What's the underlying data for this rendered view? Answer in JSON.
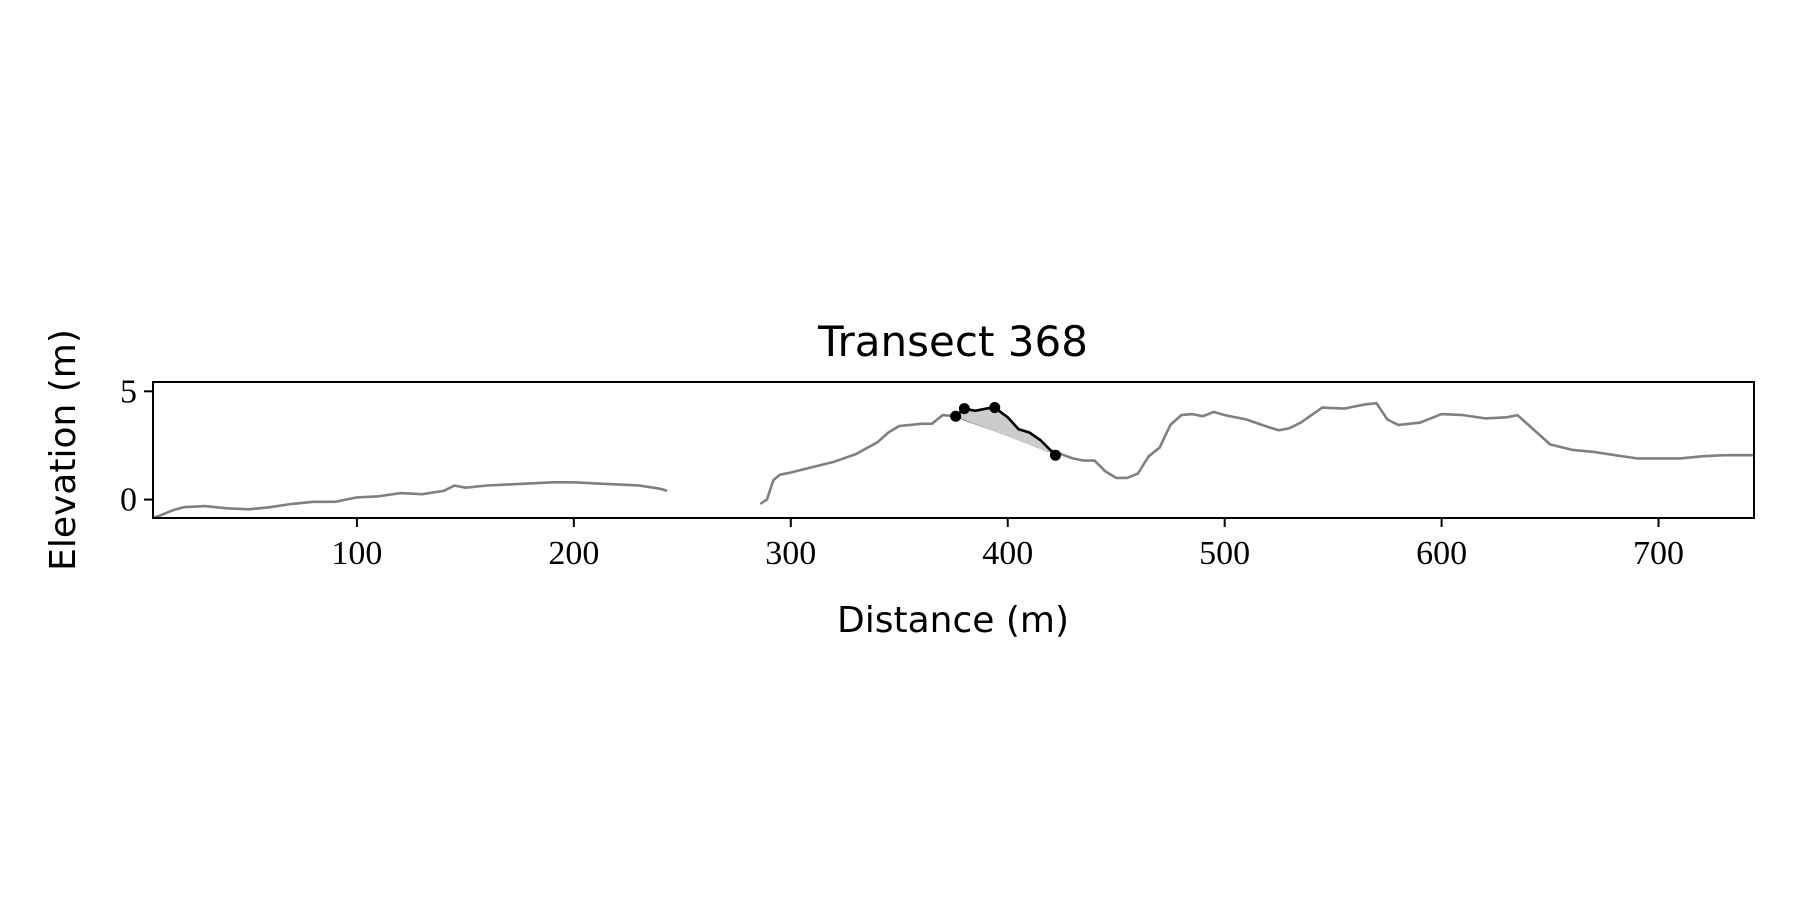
{
  "chart_data": {
    "type": "line",
    "title": "Transect 368",
    "xlabel": "Distance (m)",
    "ylabel": "Elevation (m)",
    "xlim": [
      6,
      744
    ],
    "ylim": [
      -0.85,
      5.43
    ],
    "xticks": [
      100,
      200,
      300,
      400,
      500,
      600,
      700
    ],
    "yticks": [
      0,
      5
    ],
    "series": [
      {
        "color": "#808080",
        "x": [
          6,
          10,
          15,
          20,
          30,
          40,
          50,
          60,
          70,
          80,
          90,
          100,
          110,
          120,
          130,
          140,
          145,
          150,
          160,
          170,
          180,
          190,
          200,
          210,
          220,
          230,
          240,
          243,
          265,
          286,
          289,
          292,
          295,
          300,
          310,
          320,
          330,
          340,
          345,
          350,
          355,
          360,
          365,
          370,
          376,
          430,
          435,
          440,
          445,
          450,
          455,
          460,
          465,
          470,
          475,
          480,
          485,
          490,
          495,
          500,
          510,
          520,
          525,
          530,
          535,
          545,
          555,
          565,
          570,
          575,
          580,
          590,
          600,
          610,
          620,
          630,
          635,
          640,
          650,
          660,
          670,
          680,
          690,
          700,
          710,
          720,
          730,
          744
        ],
        "values": [
          -0.85,
          -0.7,
          -0.5,
          -0.35,
          -0.3,
          -0.4,
          -0.45,
          -0.35,
          -0.2,
          -0.1,
          -0.1,
          0.1,
          0.15,
          0.3,
          0.25,
          0.4,
          0.65,
          0.55,
          0.65,
          0.7,
          0.75,
          0.8,
          0.8,
          0.75,
          0.7,
          0.65,
          0.5,
          0.4,
          null,
          -0.2,
          0,
          0.9,
          1.15,
          1.25,
          1.5,
          1.75,
          2.1,
          2.65,
          3.1,
          3.4,
          3.45,
          3.5,
          3.5,
          3.9,
          3.85,
          1.9,
          1.8,
          1.8,
          1.3,
          1.0,
          1.0,
          1.2,
          2.0,
          2.4,
          3.45,
          3.9,
          3.95,
          3.85,
          4.05,
          3.9,
          3.7,
          3.35,
          3.2,
          3.3,
          3.55,
          4.25,
          4.2,
          4.4,
          4.45,
          3.7,
          3.45,
          3.55,
          3.95,
          3.9,
          3.75,
          3.8,
          3.9,
          3.45,
          2.55,
          2.3,
          2.2,
          2.05,
          1.9,
          1.9,
          1.9,
          2.0,
          2.05,
          2.05
        ]
      },
      {
        "color": "#000000",
        "shade": "#cccccc",
        "x": [
          376,
          380,
          385,
          390,
          394,
          400,
          405,
          410,
          415,
          422
        ],
        "values": [
          3.85,
          4.2,
          4.1,
          4.2,
          4.25,
          3.8,
          3.25,
          3.1,
          2.75,
          2.05
        ]
      },
      {
        "color": "#000000",
        "marker": true,
        "x": [
          376,
          380,
          394,
          422
        ],
        "values": [
          3.85,
          4.2,
          4.25,
          2.05
        ]
      }
    ]
  }
}
